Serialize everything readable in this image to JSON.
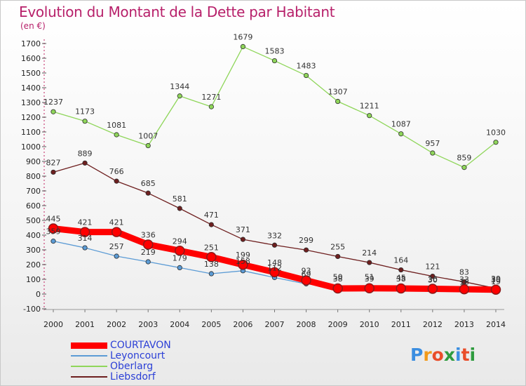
{
  "header": {
    "title": "Evolution du Montant de la Dette par Habitant",
    "unit": "(en €)"
  },
  "brand": {
    "text": "Proxiti",
    "letters": [
      "P",
      "r",
      "o",
      "x",
      "i",
      "t",
      "i"
    ],
    "colors": [
      "#3b8ee0",
      "#f29a1a",
      "#e94d2a",
      "#2e9b3e",
      "#3b8ee0",
      "#e94d2a",
      "#2e9b3e"
    ]
  },
  "chart_data": {
    "type": "line",
    "title": "Evolution du Montant de la Dette par Habitant",
    "ylabel": "(en €)",
    "xlabel": "",
    "x": [
      "2000",
      "2001",
      "2002",
      "2003",
      "2004",
      "2005",
      "2006",
      "2007",
      "2008",
      "2009",
      "2010",
      "2011",
      "2012",
      "2013",
      "2014"
    ],
    "ylim": [
      -100,
      1700
    ],
    "yticks": [
      -100,
      0,
      100,
      200,
      300,
      400,
      500,
      600,
      700,
      800,
      900,
      1000,
      1100,
      1200,
      1300,
      1400,
      1500,
      1600,
      1700
    ],
    "grid": false,
    "legend": "bottom-left",
    "series": [
      {
        "name": "COURTAVON",
        "color": "#ff0000",
        "values": [
          445,
          421,
          421,
          336,
          294,
          251,
          199,
          148,
          93,
          38,
          39,
          38,
          36,
          33,
          30
        ],
        "labels": [
          "445",
          "421",
          "421",
          "336",
          "294",
          "251",
          "199",
          "148",
          "93",
          "38",
          "39",
          "38",
          "36",
          "33",
          "30"
        ]
      },
      {
        "name": "Leyoncourt",
        "color": "#5b9bd5",
        "values": [
          359,
          314,
          257,
          219,
          179,
          138,
          158,
          112,
          69,
          50,
          51,
          45,
          30,
          16,
          19
        ],
        "labels": [
          "359",
          "314",
          "257",
          "219",
          "179",
          "138",
          "158",
          "112",
          "69",
          "50",
          "51",
          "45",
          "30",
          "16",
          "19"
        ]
      },
      {
        "name": "Oberlarg",
        "color": "#8fd65a",
        "values": [
          1237,
          1173,
          1081,
          1007,
          1344,
          1271,
          1679,
          1583,
          1483,
          1307,
          1211,
          1087,
          957,
          859,
          1030
        ],
        "labels": [
          "1237",
          "1173",
          "1081",
          "1007",
          "1344",
          "1271",
          "1679",
          "1583",
          "1483",
          "1307",
          "1211",
          "1087",
          "957",
          "859",
          "1030"
        ]
      },
      {
        "name": "Liebsdorf",
        "color": "#6e1f1f",
        "values": [
          827,
          889,
          766,
          685,
          581,
          471,
          371,
          332,
          299,
          255,
          214,
          164,
          121,
          83,
          39
        ],
        "labels": [
          "827",
          "889",
          "766",
          "685",
          "581",
          "471",
          "371",
          "332",
          "299",
          "255",
          "214",
          "164",
          "121",
          "83",
          "39"
        ]
      }
    ]
  }
}
